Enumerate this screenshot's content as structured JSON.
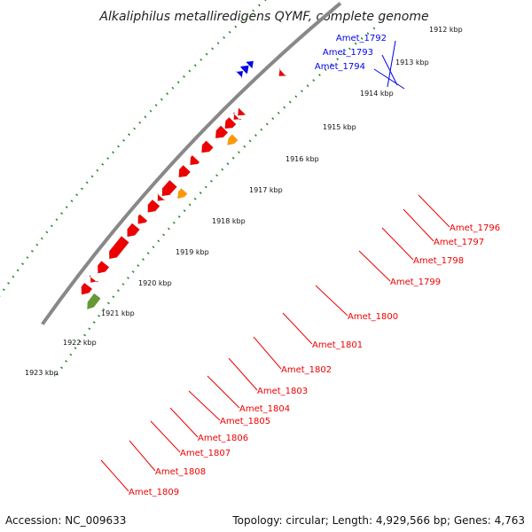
{
  "title": "Alkaliphilus metalliredigens QYMF, complete genome",
  "footer": {
    "accession": "Accession: NC_009633",
    "summary": "Topology: circular; Length: 4,929,566 bp; Genes: 4,763"
  },
  "colors": {
    "forward_gene": "#0000ee",
    "reverse_gene": "#ee0000",
    "highlight_gene": "#ff9900",
    "other_gene": "#669933",
    "backbone": "#888888",
    "ticks": "#228822"
  },
  "ticks": [
    {
      "label": "1912 kbp"
    },
    {
      "label": "1913 kbp"
    },
    {
      "label": "1914 kbp"
    },
    {
      "label": "1915 kbp"
    },
    {
      "label": "1916 kbp"
    },
    {
      "label": "1917 kbp"
    },
    {
      "label": "1918 kbp"
    },
    {
      "label": "1919 kbp"
    },
    {
      "label": "1920 kbp"
    },
    {
      "label": "1921 kbp"
    },
    {
      "label": "1922 kbp"
    },
    {
      "label": "1923 kbp"
    }
  ],
  "forward_labels": [
    "Amet_1792",
    "Amet_1793",
    "Amet_1794"
  ],
  "reverse_labels": [
    "Amet_1796",
    "Amet_1797",
    "Amet_1798",
    "Amet_1799",
    "Amet_1800",
    "Amet_1801",
    "Amet_1802",
    "Amet_1803",
    "Amet_1804",
    "Amet_1805",
    "Amet_1806",
    "Amet_1807",
    "Amet_1808",
    "Amet_1809"
  ]
}
